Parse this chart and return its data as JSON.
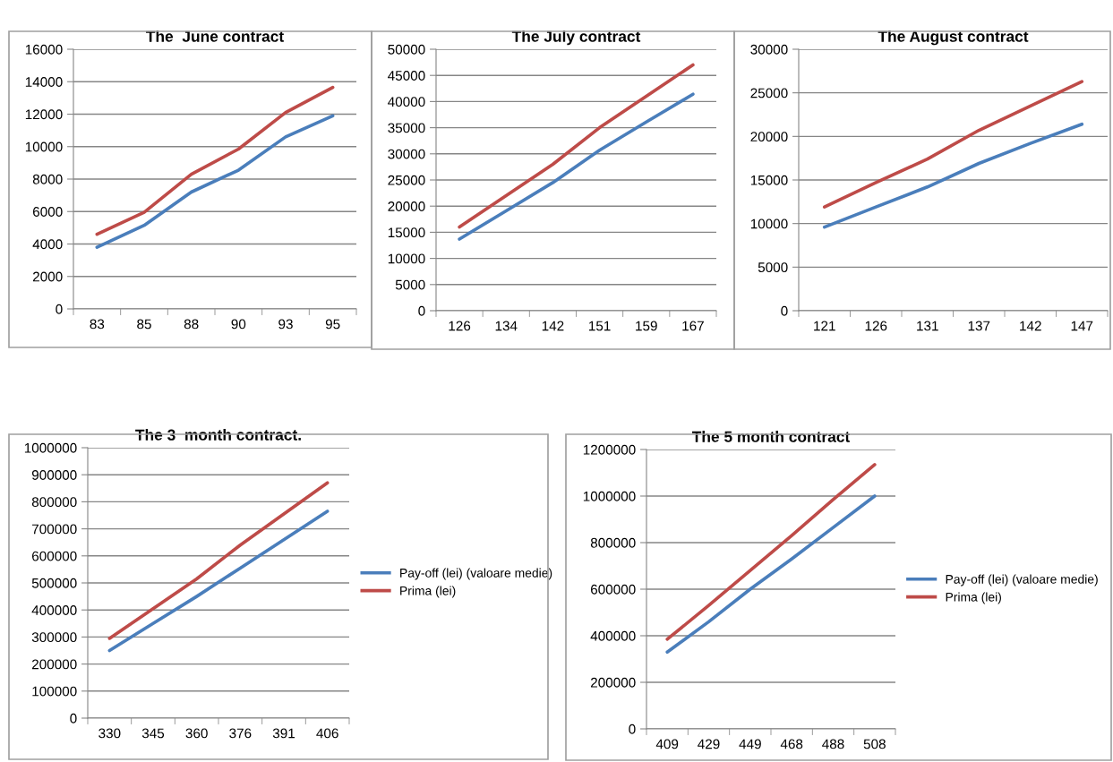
{
  "chart_data": [
    {
      "type": "line",
      "title": "The  June contract",
      "categories": [
        "83",
        "85",
        "88",
        "90",
        "93",
        "95"
      ],
      "ylim": [
        0,
        16000
      ],
      "yticks": [
        0,
        2000,
        4000,
        6000,
        8000,
        10000,
        12000,
        14000,
        16000
      ],
      "grid": "y",
      "legend": false,
      "series": [
        {
          "color": "#4a7ebb",
          "values": [
            3800,
            5150,
            7200,
            8550,
            10600,
            11900
          ]
        },
        {
          "color": "#be4b48",
          "values": [
            4600,
            5950,
            8300,
            9850,
            12100,
            13650
          ]
        }
      ]
    },
    {
      "type": "line",
      "title": "The July contract",
      "categories": [
        "126",
        "134",
        "142",
        "151",
        "159",
        "167"
      ],
      "ylim": [
        0,
        50000
      ],
      "yticks": [
        0,
        5000,
        10000,
        15000,
        20000,
        25000,
        30000,
        35000,
        40000,
        45000,
        50000
      ],
      "grid": "y",
      "legend": false,
      "series": [
        {
          "color": "#4a7ebb",
          "values": [
            13700,
            19100,
            24500,
            30700,
            36100,
            41400
          ]
        },
        {
          "color": "#be4b48",
          "values": [
            16000,
            22000,
            28000,
            35000,
            41000,
            47000
          ]
        }
      ]
    },
    {
      "type": "line",
      "title": "The August contract",
      "categories": [
        "121",
        "126",
        "131",
        "137",
        "142",
        "147"
      ],
      "ylim": [
        0,
        30000
      ],
      "yticks": [
        0,
        5000,
        10000,
        15000,
        20000,
        25000,
        30000
      ],
      "grid": "y",
      "legend": false,
      "series": [
        {
          "color": "#4a7ebb",
          "values": [
            9600,
            11900,
            14200,
            16900,
            19200,
            21400
          ]
        },
        {
          "color": "#be4b48",
          "values": [
            11900,
            14700,
            17400,
            20700,
            23500,
            26300
          ]
        }
      ]
    },
    {
      "type": "line",
      "title": "The 3  month contract.",
      "categories": [
        "330",
        "345",
        "360",
        "376",
        "391",
        "406"
      ],
      "ylim": [
        0,
        1000000
      ],
      "yticks": [
        0,
        100000,
        200000,
        300000,
        400000,
        500000,
        600000,
        700000,
        800000,
        900000,
        1000000
      ],
      "grid": "y",
      "legend": "right",
      "series": [
        {
          "name": "Pay-off (lei) (valoare medie)",
          "color": "#4a7ebb",
          "values": [
            250000,
            350000,
            450000,
            555000,
            660000,
            765000
          ]
        },
        {
          "name": "Prima (lei)",
          "color": "#be4b48",
          "values": [
            295000,
            405000,
            515000,
            640000,
            755000,
            870000
          ]
        }
      ]
    },
    {
      "type": "line",
      "title": "The 5 month contract",
      "categories": [
        "409",
        "429",
        "449",
        "468",
        "488",
        "508"
      ],
      "ylim": [
        0,
        1200000
      ],
      "yticks": [
        0,
        200000,
        400000,
        600000,
        800000,
        1000000,
        1200000
      ],
      "grid": "y",
      "legend": "right",
      "series": [
        {
          "name": "Pay-off (lei) (valoare medie)",
          "color": "#4a7ebb",
          "values": [
            330000,
            460000,
            600000,
            730000,
            865000,
            1000000
          ]
        },
        {
          "name": "Prima (lei)",
          "color": "#be4b48",
          "values": [
            385000,
            530000,
            680000,
            830000,
            985000,
            1135000
          ]
        }
      ]
    }
  ]
}
